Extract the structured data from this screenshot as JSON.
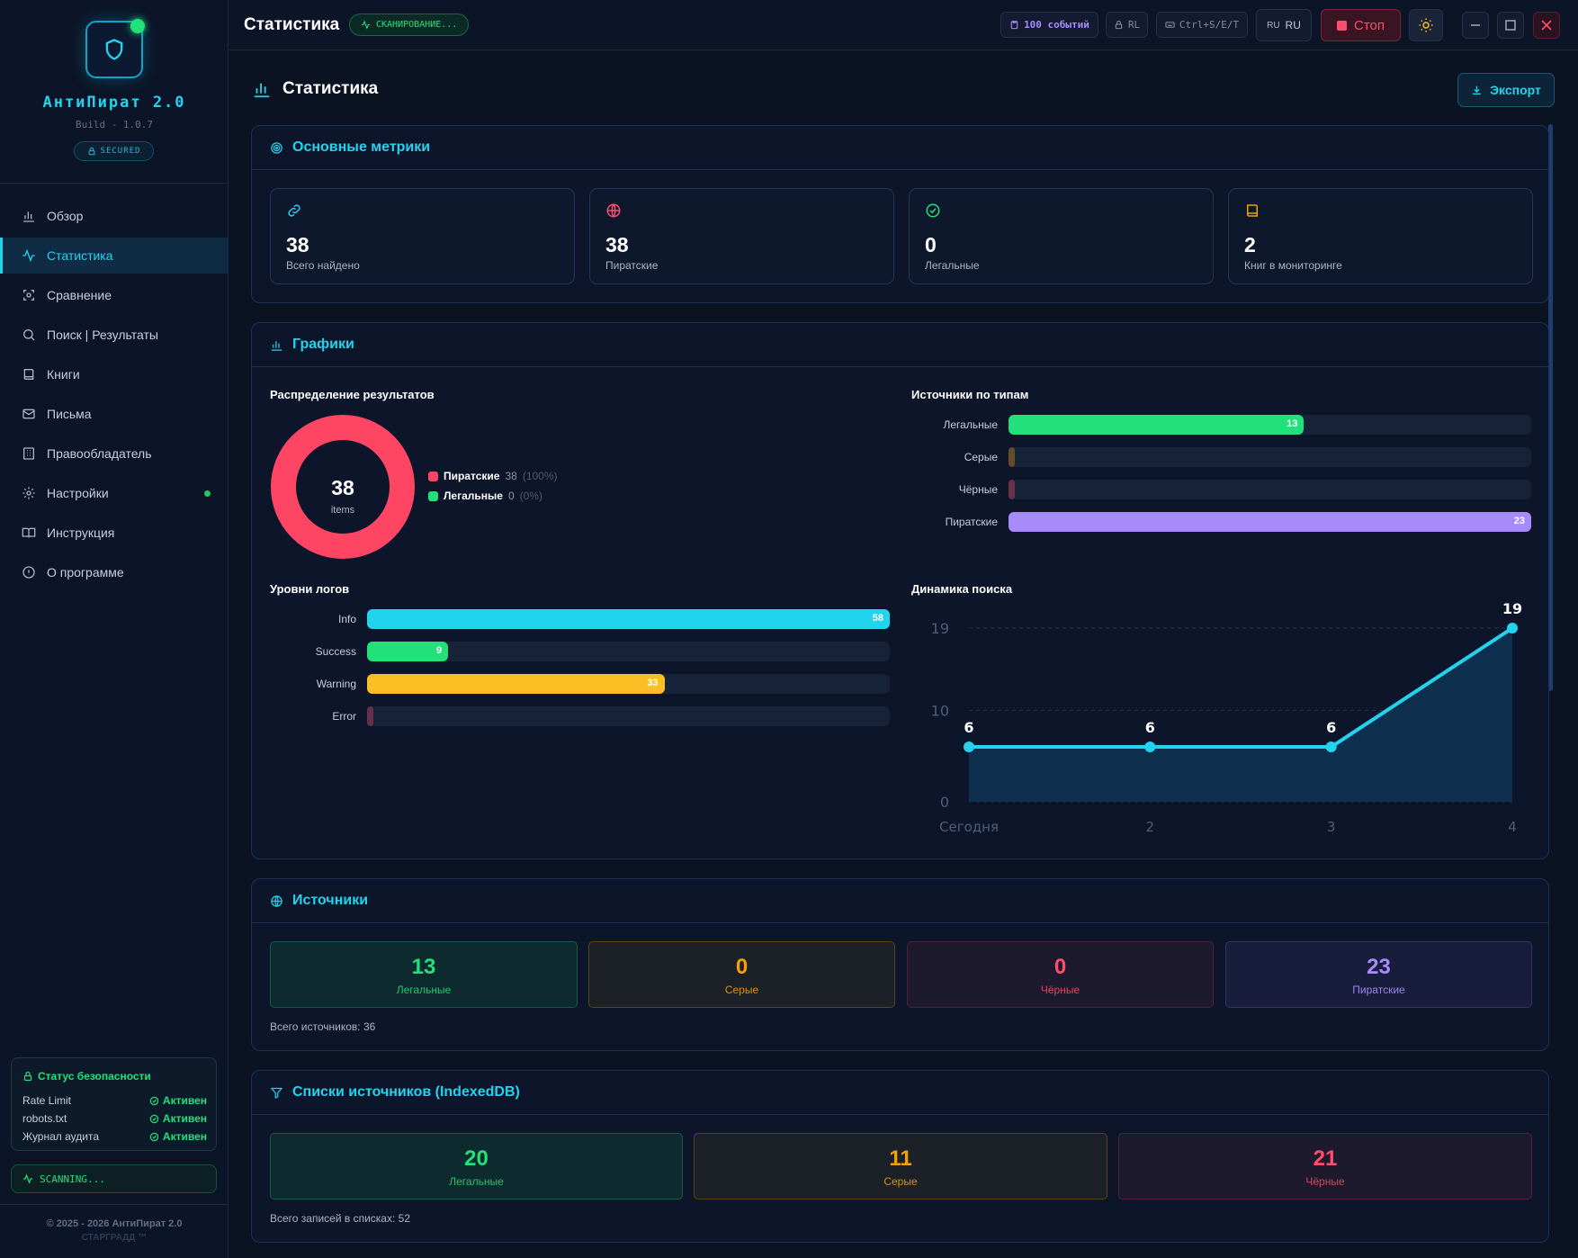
{
  "app": {
    "title": "АнтиПират 2.0",
    "build": "Build - 1.0.7",
    "secured": "SECURED"
  },
  "sidebar": {
    "items": [
      {
        "label": "Обзор",
        "icon": "bar-chart-icon"
      },
      {
        "label": "Статистика",
        "icon": "activity-icon",
        "active": true
      },
      {
        "label": "Сравнение",
        "icon": "compare-icon"
      },
      {
        "label": "Поиск | Результаты",
        "icon": "search-icon"
      },
      {
        "label": "Книги",
        "icon": "book-icon"
      },
      {
        "label": "Письма",
        "icon": "mail-icon"
      },
      {
        "label": "Правообладатель",
        "icon": "building-icon"
      },
      {
        "label": "Настройки",
        "icon": "gear-icon",
        "dot": true
      },
      {
        "label": "Инструкция",
        "icon": "open-book-icon"
      },
      {
        "label": "О программе",
        "icon": "info-icon"
      }
    ],
    "security": {
      "title": "Статус безопасности",
      "rows": [
        {
          "name": "Rate Limit",
          "status": "Активен"
        },
        {
          "name": "robots.txt",
          "status": "Активен"
        },
        {
          "name": "Журнал аудита",
          "status": "Активен"
        }
      ]
    },
    "scanning": "SCANNING...",
    "copyright": "© 2025 - 2026 АнтиПират 2.0",
    "company": "СТАРГРАДД ™"
  },
  "topbar": {
    "title": "Статистика",
    "scan_badge": "СКАНИРОВАНИЕ...",
    "events": "100 событий",
    "rl": "RL",
    "hotkeys": "Ctrl+S/E/T",
    "lang_flag": "RU",
    "lang": "RU",
    "stop": "Стоп"
  },
  "page": {
    "title": "Статистика",
    "export": "Экспорт"
  },
  "metrics": {
    "title": "Основные метрики",
    "cards": [
      {
        "value": "38",
        "label": "Всего найдено",
        "icon": "link-icon",
        "color": "#22d3ee"
      },
      {
        "value": "38",
        "label": "Пиратские",
        "icon": "globe-icon",
        "color": "#ff4d6d"
      },
      {
        "value": "0",
        "label": "Легальные",
        "icon": "check-circle-icon",
        "color": "#22e07a"
      },
      {
        "value": "2",
        "label": "Книг в мониторинге",
        "icon": "book-icon",
        "color": "#f59e0b"
      }
    ]
  },
  "charts": {
    "title": "Графики",
    "donut_title": "Распределение результатов",
    "sources_title": "Источники по типам",
    "logs_title": "Уровни логов",
    "dynamics_title": "Динамика поиска"
  },
  "chart_data": [
    {
      "type": "pie",
      "title": "Распределение результатов",
      "center_value": "38",
      "center_label": "items",
      "slices": [
        {
          "name": "Пиратские",
          "value": 38,
          "percent": "(100%)",
          "color": "#ff4564"
        },
        {
          "name": "Легальные",
          "value": 0,
          "percent": "(0%)",
          "color": "#22e07a"
        }
      ]
    },
    {
      "type": "bar",
      "orientation": "horizontal",
      "title": "Источники по типам",
      "categories": [
        "Легальные",
        "Серые",
        "Чёрные",
        "Пиратские"
      ],
      "values": [
        13,
        0,
        0,
        23
      ],
      "max": 23,
      "colors": [
        "#22e07a",
        "#f59e0b",
        "#ff4d6d",
        "#a78bfa"
      ]
    },
    {
      "type": "bar",
      "orientation": "horizontal",
      "title": "Уровни логов",
      "categories": [
        "Info",
        "Success",
        "Warning",
        "Error"
      ],
      "values": [
        58,
        9,
        33,
        0
      ],
      "max": 58,
      "colors": [
        "#22d3ee",
        "#22e07a",
        "#fbbf24",
        "#ff4d6d"
      ]
    },
    {
      "type": "area",
      "title": "Динамика поиска",
      "x": [
        "Сегодня",
        "2",
        "3",
        "4"
      ],
      "y": [
        6,
        6,
        6,
        19
      ],
      "yticks": [
        0,
        10,
        19
      ],
      "ylim": [
        0,
        19
      ],
      "color": "#22d3ee"
    }
  ],
  "sources": {
    "title": "Источники",
    "cards": [
      {
        "value": "13",
        "label": "Легальные"
      },
      {
        "value": "0",
        "label": "Серые"
      },
      {
        "value": "0",
        "label": "Чёрные"
      },
      {
        "value": "23",
        "label": "Пиратские"
      }
    ],
    "total": "Всего источников: 36"
  },
  "lists": {
    "title": "Списки источников (IndexedDB)",
    "cards": [
      {
        "value": "20",
        "label": "Легальные"
      },
      {
        "value": "11",
        "label": "Серые"
      },
      {
        "value": "21",
        "label": "Чёрные"
      }
    ],
    "total": "Всего записей в списках: 52"
  }
}
